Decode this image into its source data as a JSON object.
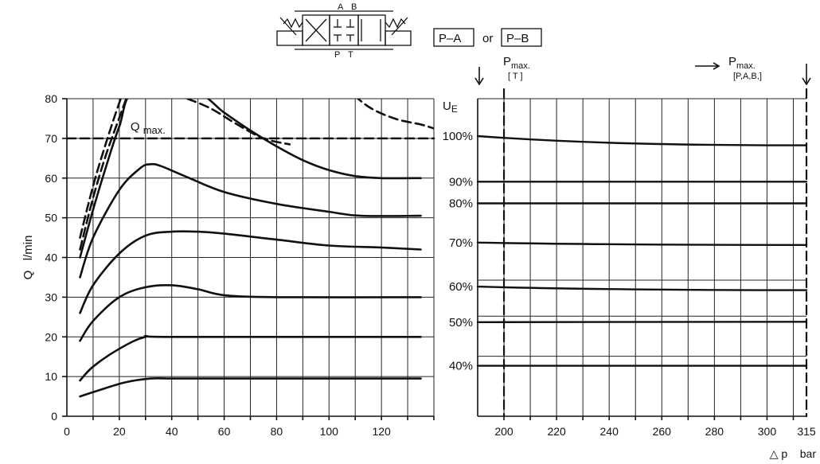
{
  "header": {
    "port_a": "A",
    "port_b": "B",
    "port_p": "P",
    "port_t": "T",
    "box1": "P–A",
    "or": "or",
    "box2": "P–B"
  },
  "chart_data": [
    {
      "type": "line",
      "ylabel": "Q   l/min",
      "qmax_label": "Q max.",
      "qmax_value": 70,
      "xlim": [
        0,
        140
      ],
      "ylim": [
        0,
        80
      ],
      "xticks": [
        0,
        20,
        40,
        60,
        80,
        100,
        120
      ],
      "yticks": [
        0,
        10,
        20,
        30,
        40,
        50,
        60,
        70,
        80
      ],
      "grid": true,
      "series": [
        {
          "style": "solid",
          "x": [
            5,
            12,
            22,
            32,
            40,
            50,
            135
          ],
          "y": [
            5,
            6.5,
            8.5,
            9.5,
            9.5,
            9.5,
            9.5
          ]
        },
        {
          "style": "solid",
          "x": [
            5,
            10,
            20,
            30,
            40,
            135
          ],
          "y": [
            9,
            12.5,
            17,
            20,
            20,
            20
          ]
        },
        {
          "style": "solid",
          "x": [
            5,
            10,
            20,
            30,
            40,
            50,
            60,
            80,
            135
          ],
          "y": [
            19,
            24,
            30,
            32.5,
            33,
            32,
            30.5,
            30,
            30
          ]
        },
        {
          "style": "solid",
          "x": [
            5,
            10,
            20,
            30,
            40,
            50,
            60,
            80,
            100,
            120,
            135
          ],
          "y": [
            26,
            33,
            41,
            45.5,
            46.5,
            46.5,
            46,
            44.5,
            43,
            42.5,
            42
          ]
        },
        {
          "style": "solid",
          "x": [
            5,
            10,
            20,
            28,
            32,
            36,
            45,
            60,
            80,
            100,
            112,
            135
          ],
          "y": [
            35,
            45,
            57,
            62.5,
            63.5,
            63,
            60.5,
            56.5,
            53.5,
            51.5,
            50.5,
            50.5
          ]
        },
        {
          "style": "solid",
          "x": [
            5,
            10,
            15,
            20,
            26,
            48,
            60,
            70,
            80,
            90,
            100,
            110,
            120,
            135
          ],
          "y": [
            40,
            52,
            63,
            73,
            82,
            82,
            76.5,
            72,
            68,
            64.5,
            62,
            60.5,
            60,
            60
          ]
        },
        {
          "style": "dashed",
          "x": [
            5,
            10,
            15,
            21,
            27
          ],
          "y": [
            42,
            55,
            66,
            77,
            88
          ]
        },
        {
          "style": "dashed",
          "x": [
            5,
            10,
            15,
            20,
            24
          ],
          "y": [
            45,
            58,
            69,
            79,
            86
          ]
        },
        {
          "style": "dashed",
          "x": [
            46,
            55,
            65,
            75,
            85
          ],
          "y": [
            80,
            77.5,
            73.5,
            70,
            68.5
          ]
        },
        {
          "style": "dashed",
          "x": [
            106,
            115,
            125,
            135,
            140
          ],
          "y": [
            83,
            78,
            75,
            73.5,
            72.5
          ]
        }
      ]
    },
    {
      "type": "line",
      "xlabel": "△ p    bar",
      "ylabel": "UE",
      "xlim": [
        190,
        315
      ],
      "xticks": [
        200,
        220,
        240,
        260,
        280,
        300,
        315
      ],
      "grid": true,
      "pmax_t_label": "Pmax.",
      "pmax_t_sub": "[ T ]",
      "pmax_pab_label": "Pmax.",
      "pmax_pab_sub": "[P,A,B,]",
      "levels": [
        {
          "label": "100%",
          "start": 100,
          "end": 97.7
        },
        {
          "label": "90%",
          "start": 88.6,
          "end": 88.6
        },
        {
          "label": "80%",
          "start": 83.2,
          "end": 83.2
        },
        {
          "label": "70%",
          "start": 73.4,
          "end": 72.8
        },
        {
          "label": "60%",
          "start": 62.4,
          "end": 61.5
        },
        {
          "label": "50%",
          "start": 53.5,
          "end": 53.6
        },
        {
          "label": "40%",
          "start": 42.6,
          "end": 42.6
        }
      ],
      "extra_lines": [
        64.0,
        55.0,
        45.0
      ]
    }
  ]
}
